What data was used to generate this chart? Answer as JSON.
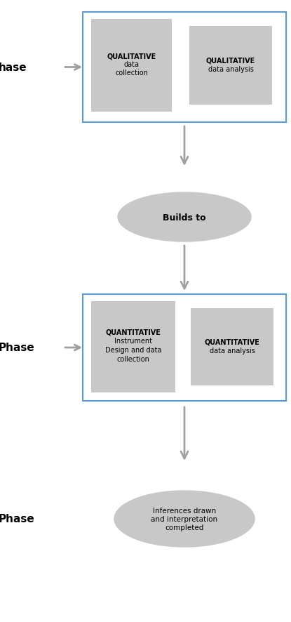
{
  "bg_color": "#ffffff",
  "box_fill": "#c8c8c8",
  "outline_color": "#5b9bd5",
  "arrow_color": "#a0a0a0",
  "text_color": "#000000",
  "phase1_label": "hase",
  "phase2_label": "Phase",
  "phase3_label": "Phase",
  "box1_bold": "QUALITATIVE",
  "box1_line2": "data",
  "box1_line3": "collection",
  "box2_bold": "QUALITATIVE",
  "box2_line2": "data analysis",
  "builds_to": "Builds to",
  "box3_bold": "QUANTITATIVE",
  "box3_line2": "Instrument",
  "box3_line3": "Design and data",
  "box3_line4": "collection",
  "box4_bold": "QUANTITATIVE",
  "box4_line2": "data analysis",
  "inf_line1": "Inferences drawn",
  "inf_line2": "and interpretation",
  "inf_line3": "completed",
  "fig_width": 4.15,
  "fig_height": 8.87,
  "dpi": 100
}
